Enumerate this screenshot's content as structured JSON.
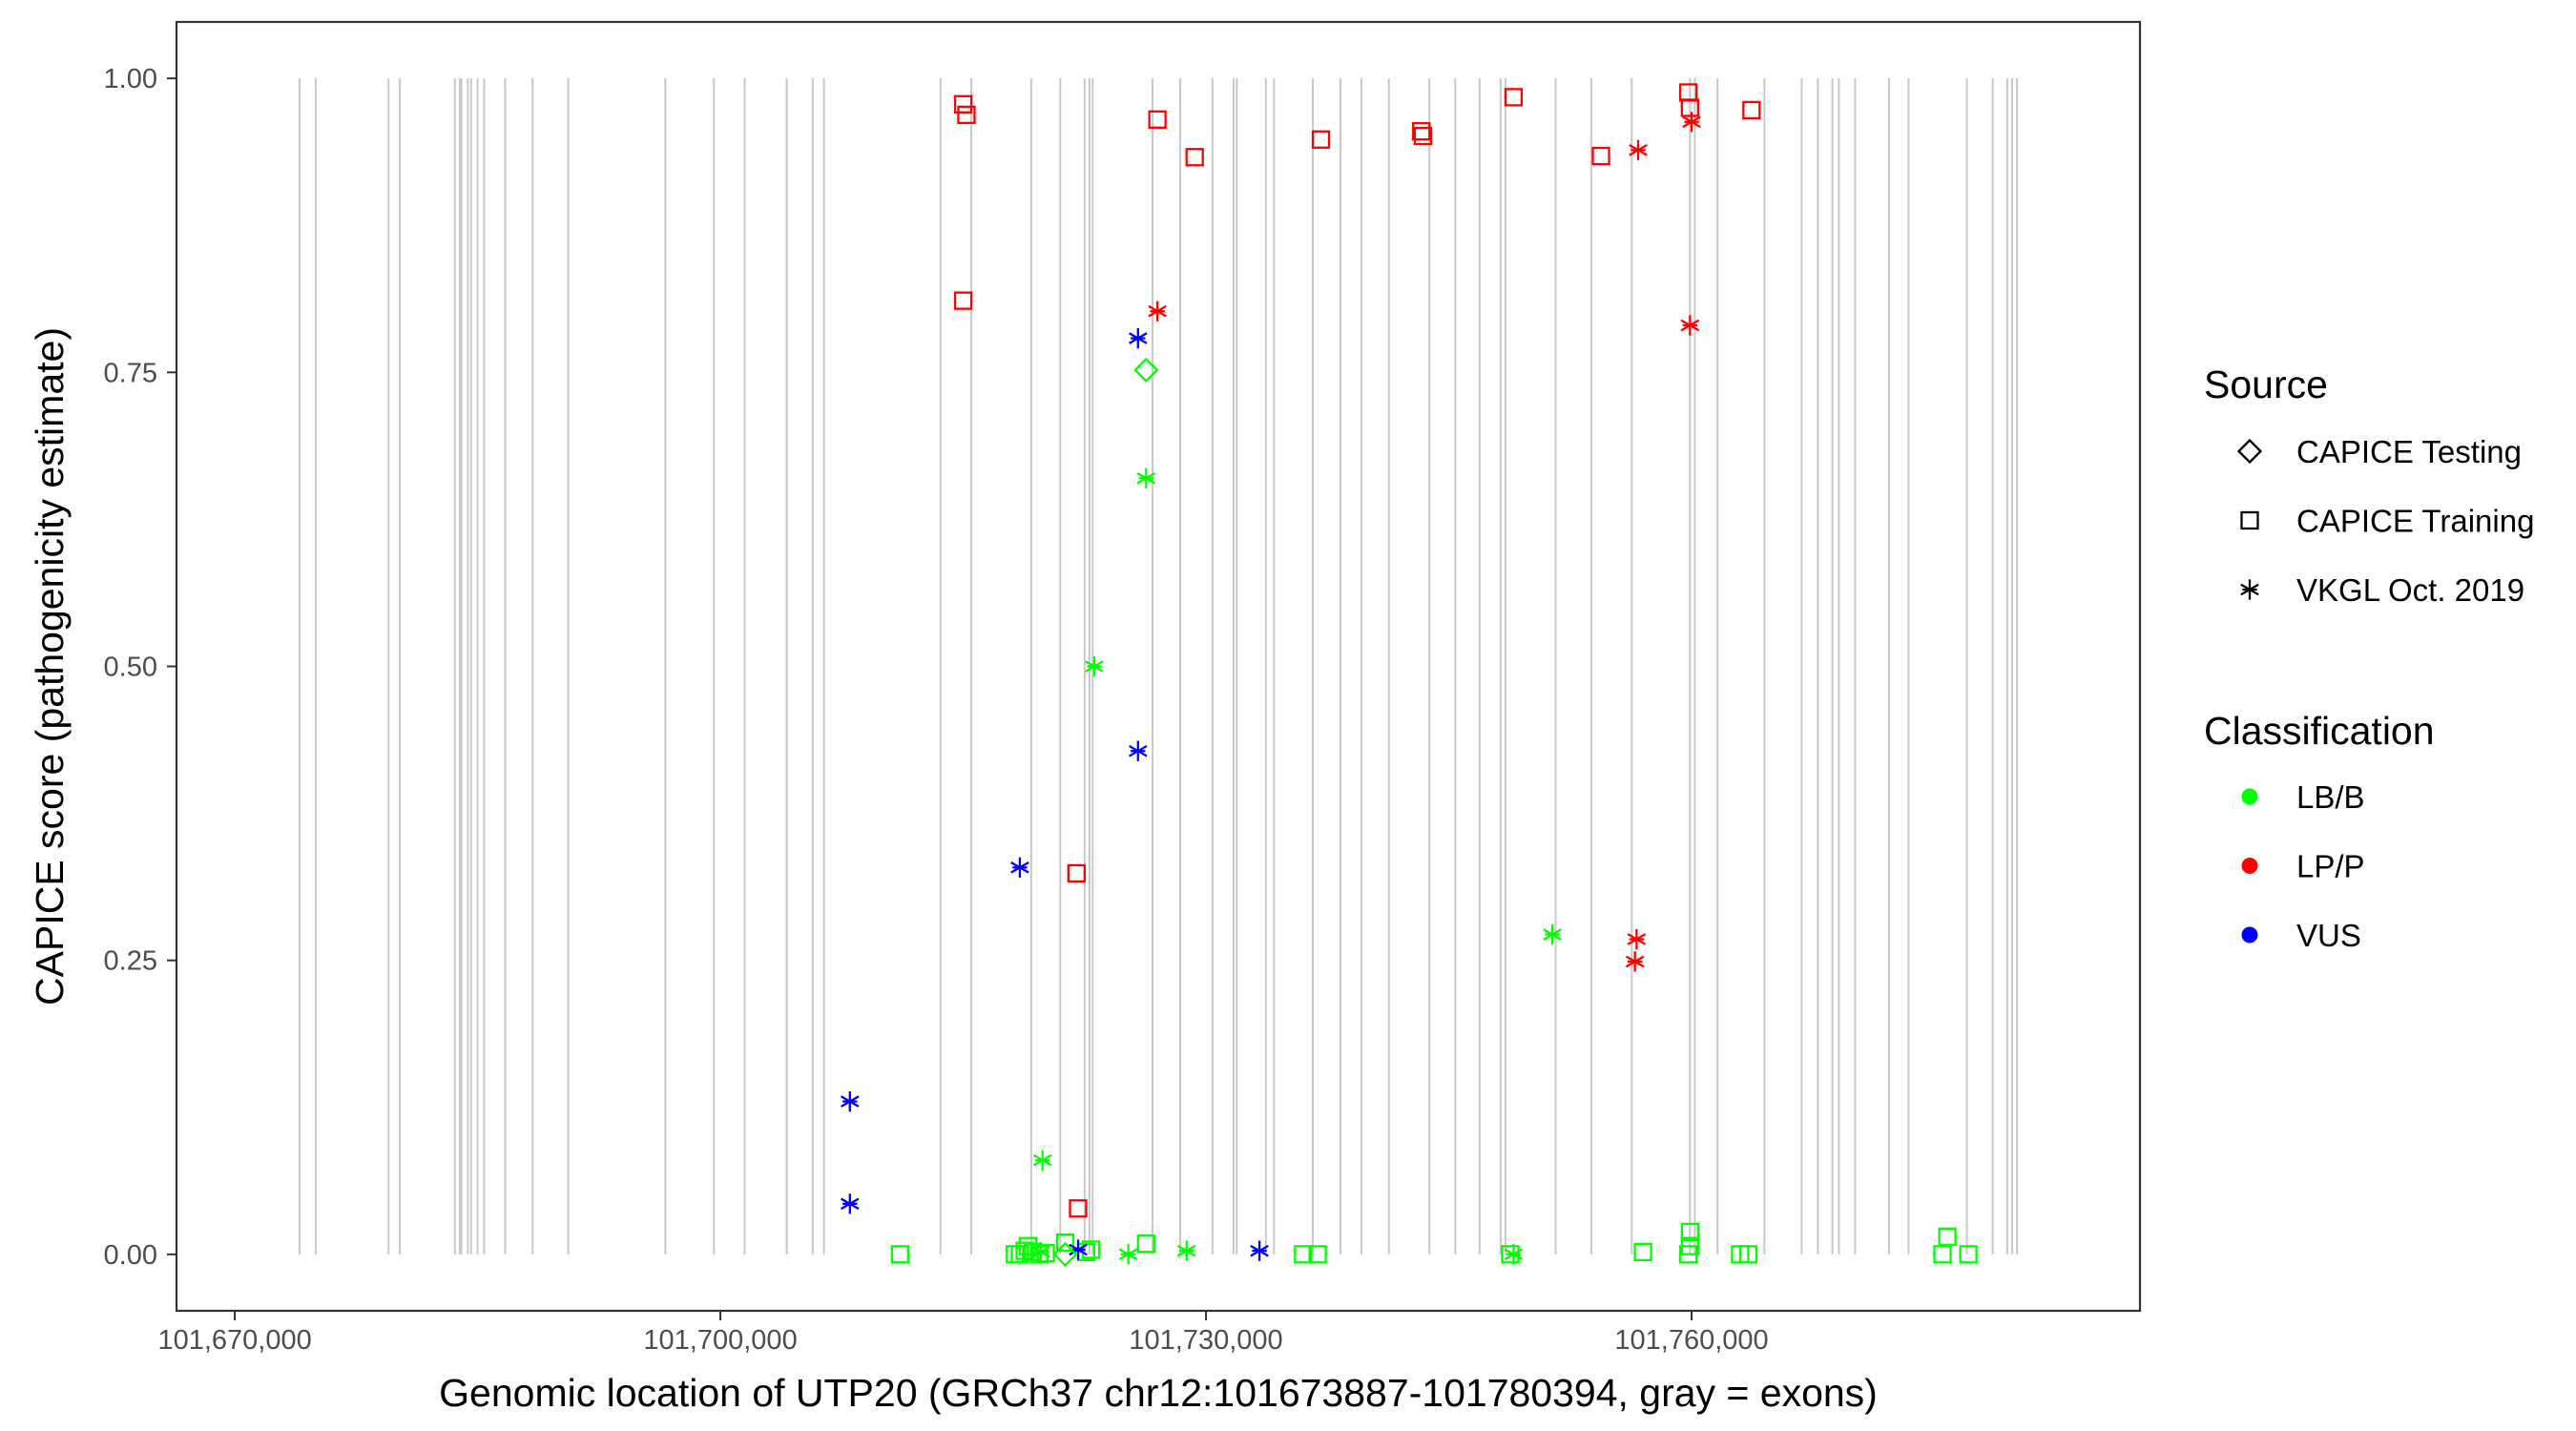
{
  "chart_data": {
    "type": "scatter",
    "title": "",
    "xlabel": "Genomic location of UTP20 (GRCh37 chr12:101673887-101780394, gray = exons)",
    "ylabel": "CAPICE score (pathogenicity estimate)",
    "xlim": [
      101666400,
      101787700
    ],
    "ylim": [
      -0.048,
      1.048
    ],
    "x_ticks": [
      101670000,
      101700000,
      101730000,
      101760000
    ],
    "x_tick_labels": [
      "101,670,000",
      "101,700,000",
      "101,730,000",
      "101,760,000"
    ],
    "y_ticks": [
      0,
      0.25,
      0.5,
      0.75,
      1
    ],
    "y_tick_labels": [
      "0.00",
      "0.25",
      "0.50",
      "0.75",
      "1.00"
    ],
    "grid": false,
    "legend_position": "right",
    "exons": [
      101674000,
      101675000,
      101679500,
      101680200,
      101683600,
      101683900,
      101684000,
      101684400,
      101684600,
      101685000,
      101685400,
      101686700,
      101688400,
      101690600,
      101696600,
      101699600,
      101701500,
      101704100,
      101705700,
      101706400,
      101713600,
      101715500,
      101719200,
      101721000,
      101722500,
      101722800,
      101723000,
      101726700,
      101728400,
      101730400,
      101731700,
      101731900,
      101733700,
      101734200,
      101736600,
      101738300,
      101739600,
      101741300,
      101743800,
      101745400,
      101746900,
      101748200,
      101748500,
      101751600,
      101753800,
      101756300,
      101759900,
      101760200,
      101761600,
      101764500,
      101766800,
      101767800,
      101768700,
      101769100,
      101770100,
      101772200,
      101773400,
      101777000,
      101778600,
      101779500,
      101779800,
      101780100
    ],
    "legend": {
      "source_title": "Source",
      "source_entries": [
        {
          "label": "CAPICE Testing",
          "shape": "diamond"
        },
        {
          "label": "CAPICE Training",
          "shape": "square"
        },
        {
          "label": "VKGL Oct. 2019",
          "shape": "asterisk"
        }
      ],
      "class_title": "Classification",
      "class_entries": [
        {
          "label": "LB/B",
          "color": "#00ff00"
        },
        {
          "label": "LP/P",
          "color": "#ff0000"
        },
        {
          "label": "VUS",
          "color": "#0000ff"
        }
      ]
    },
    "series": [
      {
        "name": "CAPICE Training",
        "shape": "square",
        "points": [
          {
            "x": 101715000,
            "y": 0.978,
            "cls": "LP/P"
          },
          {
            "x": 101715200,
            "y": 0.969,
            "cls": "LP/P"
          },
          {
            "x": 101715000,
            "y": 0.811,
            "cls": "LP/P"
          },
          {
            "x": 101727000,
            "y": 0.965,
            "cls": "LP/P"
          },
          {
            "x": 101729300,
            "y": 0.933,
            "cls": "LP/P"
          },
          {
            "x": 101737100,
            "y": 0.948,
            "cls": "LP/P"
          },
          {
            "x": 101743300,
            "y": 0.955,
            "cls": "LP/P"
          },
          {
            "x": 101743400,
            "y": 0.951,
            "cls": "LP/P"
          },
          {
            "x": 101749000,
            "y": 0.984,
            "cls": "LP/P"
          },
          {
            "x": 101754400,
            "y": 0.934,
            "cls": "LP/P"
          },
          {
            "x": 101759800,
            "y": 0.988,
            "cls": "LP/P"
          },
          {
            "x": 101759900,
            "y": 0.975,
            "cls": "LP/P"
          },
          {
            "x": 101763700,
            "y": 0.973,
            "cls": "LP/P"
          },
          {
            "x": 101722000,
            "y": 0.324,
            "cls": "LP/P"
          },
          {
            "x": 101722100,
            "y": 0.039,
            "cls": "LP/P"
          },
          {
            "x": 101711100,
            "y": 0.0,
            "cls": "LB/B"
          },
          {
            "x": 101718200,
            "y": 0.0,
            "cls": "LB/B"
          },
          {
            "x": 101718500,
            "y": 0.0,
            "cls": "LB/B"
          },
          {
            "x": 101718800,
            "y": 0.003,
            "cls": "LB/B"
          },
          {
            "x": 101719000,
            "y": 0.007,
            "cls": "LB/B"
          },
          {
            "x": 101719300,
            "y": 0.002,
            "cls": "LB/B"
          },
          {
            "x": 101719700,
            "y": 0.0,
            "cls": "LB/B"
          },
          {
            "x": 101720100,
            "y": 0.001,
            "cls": "LB/B"
          },
          {
            "x": 101721300,
            "y": 0.01,
            "cls": "LB/B"
          },
          {
            "x": 101722600,
            "y": 0.002,
            "cls": "LB/B"
          },
          {
            "x": 101722900,
            "y": 0.004,
            "cls": "LB/B"
          },
          {
            "x": 101726300,
            "y": 0.009,
            "cls": "LB/B"
          },
          {
            "x": 101736000,
            "y": 0.0,
            "cls": "LB/B"
          },
          {
            "x": 101736900,
            "y": 0.0,
            "cls": "LB/B"
          },
          {
            "x": 101748800,
            "y": 0.0,
            "cls": "LB/B"
          },
          {
            "x": 101757000,
            "y": 0.002,
            "cls": "LB/B"
          },
          {
            "x": 101759800,
            "y": 0.0,
            "cls": "LB/B"
          },
          {
            "x": 101759900,
            "y": 0.007,
            "cls": "LB/B"
          },
          {
            "x": 101759900,
            "y": 0.019,
            "cls": "LB/B"
          },
          {
            "x": 101763000,
            "y": 0.0,
            "cls": "LB/B"
          },
          {
            "x": 101763500,
            "y": 0.0,
            "cls": "LB/B"
          },
          {
            "x": 101775500,
            "y": 0.0,
            "cls": "LB/B"
          },
          {
            "x": 101775800,
            "y": 0.015,
            "cls": "LB/B"
          },
          {
            "x": 101777100,
            "y": 0.0,
            "cls": "LB/B"
          }
        ]
      },
      {
        "name": "VKGL Oct. 2019",
        "shape": "asterisk",
        "points": [
          {
            "x": 101727000,
            "y": 0.802,
            "cls": "LP/P"
          },
          {
            "x": 101756700,
            "y": 0.939,
            "cls": "LP/P"
          },
          {
            "x": 101760000,
            "y": 0.963,
            "cls": "LP/P"
          },
          {
            "x": 101759900,
            "y": 0.79,
            "cls": "LP/P"
          },
          {
            "x": 101756600,
            "y": 0.268,
            "cls": "LP/P"
          },
          {
            "x": 101756500,
            "y": 0.249,
            "cls": "LP/P"
          },
          {
            "x": 101725800,
            "y": 0.779,
            "cls": "VUS"
          },
          {
            "x": 101725800,
            "y": 0.428,
            "cls": "VUS"
          },
          {
            "x": 101718500,
            "y": 0.329,
            "cls": "VUS"
          },
          {
            "x": 101708000,
            "y": 0.13,
            "cls": "VUS"
          },
          {
            "x": 101708000,
            "y": 0.043,
            "cls": "VUS"
          },
          {
            "x": 101722100,
            "y": 0.004,
            "cls": "VUS"
          },
          {
            "x": 101733300,
            "y": 0.003,
            "cls": "VUS"
          },
          {
            "x": 101726300,
            "y": 0.66,
            "cls": "LB/B"
          },
          {
            "x": 101723100,
            "y": 0.5,
            "cls": "LB/B"
          },
          {
            "x": 101751400,
            "y": 0.272,
            "cls": "LB/B"
          },
          {
            "x": 101719900,
            "y": 0.08,
            "cls": "LB/B"
          },
          {
            "x": 101725200,
            "y": 0.0,
            "cls": "LB/B"
          },
          {
            "x": 101728800,
            "y": 0.003,
            "cls": "LB/B"
          },
          {
            "x": 101749000,
            "y": 0.0,
            "cls": "LB/B"
          },
          {
            "x": 101719800,
            "y": 0.002,
            "cls": "LB/B"
          }
        ]
      },
      {
        "name": "CAPICE Testing",
        "shape": "diamond",
        "points": [
          {
            "x": 101726300,
            "y": 0.752,
            "cls": "LB/B"
          },
          {
            "x": 101721300,
            "y": 0.0,
            "cls": "LB/B"
          }
        ]
      }
    ]
  }
}
